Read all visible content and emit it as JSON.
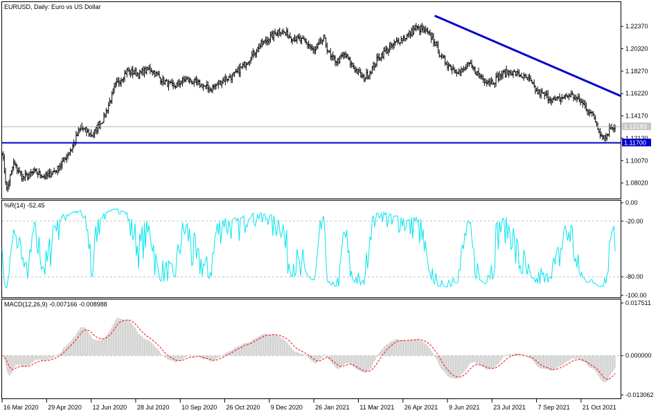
{
  "chart_data": [
    {
      "type": "line",
      "title": "EURUSD, Daily:  Euro vs US Dollar",
      "style": "bars",
      "ylim": [
        1.066,
        1.246
      ],
      "yticks": [
        "1.22370",
        "1.20320",
        "1.18270",
        "1.16220",
        "1.14170",
        "1.12120",
        "1.10070",
        "1.08020"
      ],
      "current_price": "1.13183",
      "current_price_value": 1.13183,
      "support_line": {
        "label": "1.11700",
        "value": 1.117,
        "color": "#0000cc"
      },
      "trendline": {
        "from": [
          "2021-05-25",
          1.2335
        ],
        "to": [
          "2021-12-10",
          1.16
        ],
        "color": "#0000cc"
      },
      "xlabels": [
        "16 Mar 2020",
        "29 Apr 2020",
        "12 Jun 2020",
        "28 Jul 2020",
        "10 Sep 2020",
        "26 Oct 2020",
        "9 Dec 2020",
        "26 Jan 2021",
        "11 Mar 2021",
        "26 Apr 2021",
        "9 Jun 2021",
        "23 Jul 2021",
        "7 Sep 2021",
        "21 Oct 2021"
      ],
      "keypoints": [
        [
          0,
          1.11
        ],
        [
          4,
          1.074
        ],
        [
          10,
          1.098
        ],
        [
          18,
          1.085
        ],
        [
          28,
          1.09
        ],
        [
          38,
          1.086
        ],
        [
          48,
          1.093
        ],
        [
          60,
          1.112
        ],
        [
          68,
          1.131
        ],
        [
          78,
          1.124
        ],
        [
          88,
          1.14
        ],
        [
          98,
          1.169
        ],
        [
          108,
          1.183
        ],
        [
          118,
          1.18
        ],
        [
          128,
          1.185
        ],
        [
          138,
          1.175
        ],
        [
          148,
          1.168
        ],
        [
          158,
          1.175
        ],
        [
          170,
          1.171
        ],
        [
          180,
          1.166
        ],
        [
          192,
          1.175
        ],
        [
          202,
          1.18
        ],
        [
          212,
          1.192
        ],
        [
          222,
          1.205
        ],
        [
          232,
          1.214
        ],
        [
          240,
          1.22
        ],
        [
          248,
          1.215
        ],
        [
          256,
          1.212
        ],
        [
          264,
          1.208
        ],
        [
          270,
          1.2
        ],
        [
          278,
          1.213
        ],
        [
          284,
          1.195
        ],
        [
          290,
          1.192
        ],
        [
          296,
          1.198
        ],
        [
          304,
          1.186
        ],
        [
          312,
          1.176
        ],
        [
          318,
          1.182
        ],
        [
          326,
          1.196
        ],
        [
          334,
          1.203
        ],
        [
          342,
          1.21
        ],
        [
          350,
          1.215
        ],
        [
          358,
          1.222
        ],
        [
          364,
          1.221
        ],
        [
          372,
          1.213
        ],
        [
          380,
          1.195
        ],
        [
          388,
          1.186
        ],
        [
          396,
          1.182
        ],
        [
          404,
          1.188
        ],
        [
          410,
          1.182
        ],
        [
          416,
          1.175
        ],
        [
          424,
          1.173
        ],
        [
          432,
          1.18
        ],
        [
          440,
          1.182
        ],
        [
          448,
          1.179
        ],
        [
          456,
          1.174
        ],
        [
          462,
          1.164
        ],
        [
          470,
          1.16
        ],
        [
          478,
          1.156
        ],
        [
          486,
          1.159
        ],
        [
          492,
          1.161
        ],
        [
          500,
          1.155
        ],
        [
          506,
          1.148
        ],
        [
          512,
          1.14
        ],
        [
          518,
          1.124
        ],
        [
          522,
          1.122
        ],
        [
          526,
          1.132
        ],
        [
          530,
          1.132
        ]
      ],
      "series": [
        {
          "name": "EURUSD",
          "color": "#000000"
        }
      ]
    },
    {
      "type": "line",
      "title": "%R(14) -52.45",
      "ylim": [
        -100,
        0
      ],
      "yticks": [
        "0.00",
        "-20.00",
        "-80.00",
        "-100.00"
      ],
      "levels": [
        -20,
        -80
      ],
      "last_value": -52.45,
      "series": [
        {
          "name": "%R(14)",
          "color": "#00e5ee"
        }
      ]
    },
    {
      "type": "bar",
      "title": "MACD(12,26,9) -0.007166 -0.008988",
      "ylim": [
        -0.013062,
        0.017511
      ],
      "yticks": [
        "0.017511",
        "0.000000",
        "-0.013062"
      ],
      "main_value": -0.007166,
      "signal_value": -0.008988,
      "series": [
        {
          "name": "MACD",
          "color": "#c0c0c0"
        },
        {
          "name": "Signal",
          "color": "#ff0000"
        }
      ]
    }
  ]
}
